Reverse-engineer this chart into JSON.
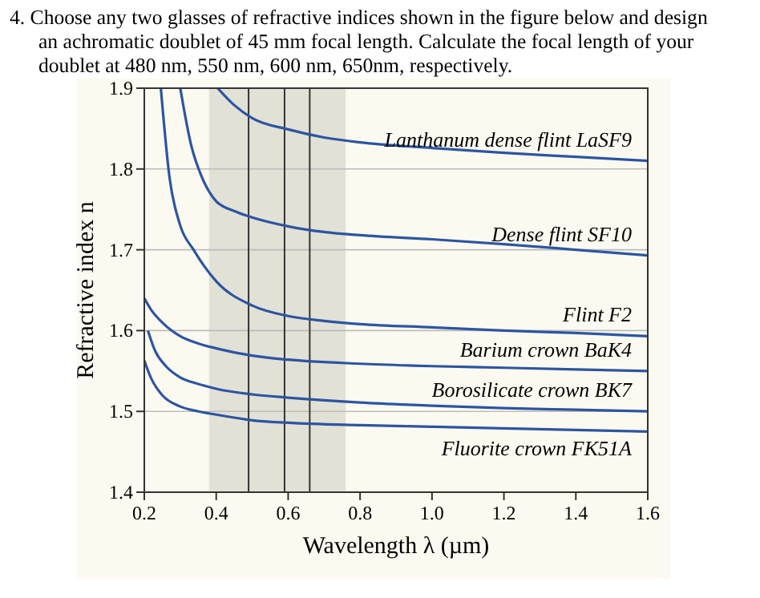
{
  "chart_data": {
    "type": "line",
    "title": "4. Choose any two glasses of refractive indices shown in the figure below and design an achromatic doublet of 45 mm focal length. Calculate the focal length of your doublet at 480 nm, 550 nm, 600 nm, 650nm, respectively.",
    "xlabel": "Wavelength λ (µm)",
    "ylabel": "Refractive index n",
    "xlim": [
      0.2,
      1.6
    ],
    "ylim": [
      1.4,
      1.9
    ],
    "xticks": [
      0.2,
      0.4,
      0.6,
      0.8,
      {
        "value": 1,
        "label": "1.0"
      },
      1.2,
      1.4,
      1.6
    ],
    "yticks": [
      1.4,
      1.5,
      1.6,
      1.7,
      1.8,
      1.9
    ],
    "grid": "y",
    "line_style": "solid",
    "series": [
      {
        "name": "Lanthanum dense flint LaSF9",
        "color": "#2d55a0",
        "x": [
          0.404,
          0.45,
          0.5,
          0.6,
          0.7,
          0.8,
          1.0,
          1.2,
          1.4,
          1.6
        ],
        "values": [
          1.9,
          1.879,
          1.863,
          1.849,
          1.839,
          1.833,
          1.826,
          1.82,
          1.815,
          1.81
        ]
      },
      {
        "name": "Dense flint SF10",
        "color": "#2d55a0",
        "x": [
          0.3,
          0.33,
          0.36,
          0.4,
          0.45,
          0.5,
          0.6,
          0.7,
          0.8,
          1.0,
          1.2,
          1.4,
          1.6
        ],
        "values": [
          1.9,
          1.83,
          1.79,
          1.76,
          1.748,
          1.74,
          1.729,
          1.722,
          1.718,
          1.713,
          1.707,
          1.7,
          1.693
        ]
      },
      {
        "name": "Flint F2",
        "color": "#2d55a0",
        "x": [
          0.246,
          0.27,
          0.3,
          0.337,
          0.4,
          0.5,
          0.6,
          0.7,
          0.8,
          1.0,
          1.2,
          1.4,
          1.6
        ],
        "values": [
          1.9,
          1.79,
          1.73,
          1.7,
          1.661,
          1.631,
          1.618,
          1.612,
          1.608,
          1.604,
          1.6,
          1.597,
          1.593
        ]
      },
      {
        "name": "Barium crown BaK4",
        "color": "#2d55a0",
        "x": [
          0.2,
          0.22,
          0.25,
          0.3,
          0.35,
          0.4,
          0.5,
          0.6,
          0.8,
          1.0,
          1.2,
          1.4,
          1.6
        ],
        "values": [
          1.64,
          1.625,
          1.61,
          1.593,
          1.584,
          1.578,
          1.569,
          1.564,
          1.559,
          1.556,
          1.554,
          1.552,
          1.55
        ]
      },
      {
        "name": "Borosilicate crown BK7",
        "color": "#2d55a0",
        "x": [
          0.21,
          0.23,
          0.26,
          0.3,
          0.35,
          0.4,
          0.5,
          0.6,
          0.8,
          1.0,
          1.2,
          1.4,
          1.6
        ],
        "values": [
          1.6,
          1.575,
          1.556,
          1.542,
          1.534,
          1.528,
          1.521,
          1.517,
          1.511,
          1.507,
          1.504,
          1.502,
          1.5
        ]
      },
      {
        "name": "Fluorite crown FK51A",
        "color": "#2d55a0",
        "x": [
          0.2,
          0.22,
          0.25,
          0.3,
          0.35,
          0.4,
          0.5,
          0.6,
          0.8,
          1.0,
          1.2,
          1.4,
          1.6
        ],
        "values": [
          1.563,
          1.54,
          1.52,
          1.506,
          1.5,
          1.496,
          1.489,
          1.486,
          1.483,
          1.481,
          1.479,
          1.477,
          1.475
        ]
      }
    ],
    "bands": [
      {
        "axis": "x",
        "from": 0.38,
        "to": 0.76,
        "color": "#e2e1d6"
      }
    ],
    "ref_lines": [
      {
        "axis": "x",
        "value": 0.49,
        "color": "#333333"
      },
      {
        "axis": "x",
        "value": 0.59,
        "color": "#333333"
      },
      {
        "axis": "x",
        "value": 0.66,
        "color": "#333333"
      }
    ]
  }
}
